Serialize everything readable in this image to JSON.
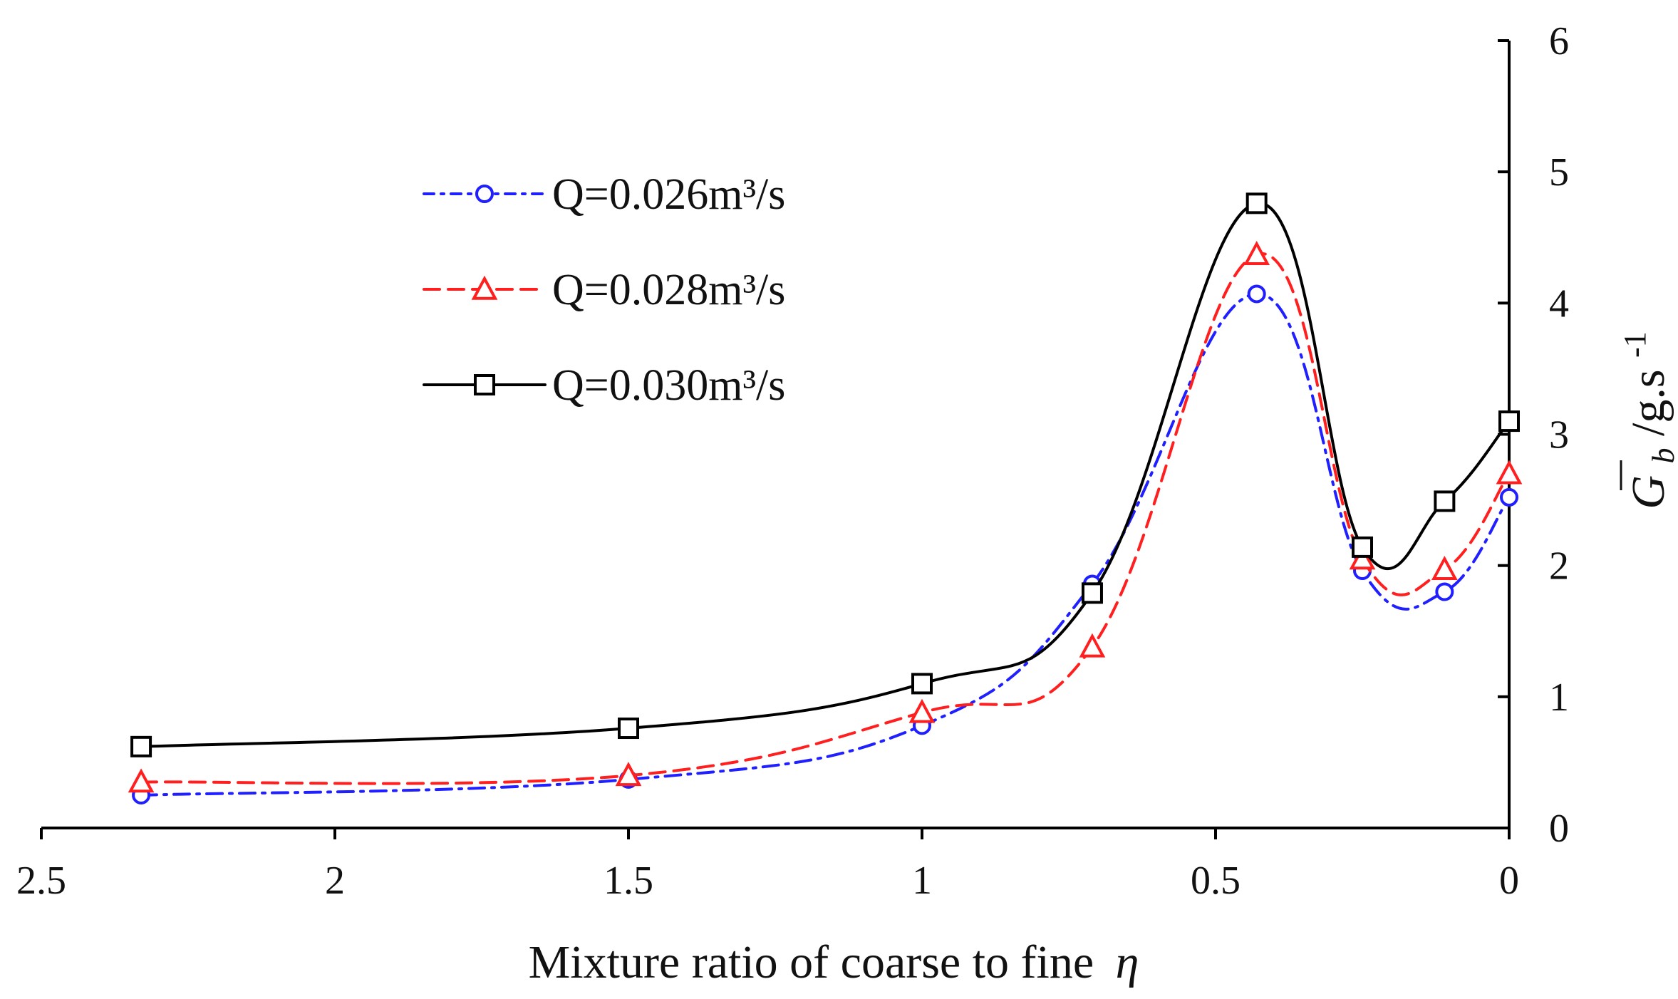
{
  "chart_data": {
    "type": "line",
    "title": "",
    "xlabel": "Mixture ratio of coarse to fine η",
    "xlabel_prefix": "Mixture ratio of coarse to fine",
    "xlabel_var": "η",
    "ylabel": "Gb/g.s-1",
    "ylabel_parts": {
      "var": "G",
      "sub": "b",
      "unit": "/g.s",
      "sup": "-1"
    },
    "x_reversed": true,
    "xlim": [
      0,
      2.5
    ],
    "ylim": [
      0,
      6
    ],
    "x_ticks": [
      2.5,
      2,
      1.5,
      1,
      0.5,
      0
    ],
    "x_tick_labels": [
      "2.5",
      "2",
      "1.5",
      "1",
      "0.5",
      "0"
    ],
    "y_ticks": [
      0,
      1,
      2,
      3,
      4,
      5,
      6
    ],
    "y_tick_labels": [
      "0",
      "1",
      "2",
      "3",
      "4",
      "5",
      "6"
    ],
    "y_axis_side": "right",
    "legend_position": "top-left",
    "grid": false,
    "x": [
      2.33,
      1.5,
      1.0,
      0.71,
      0.43,
      0.25,
      0.11,
      0.0
    ],
    "series": [
      {
        "name": "Q=0.026m³/s",
        "color": "#1f1fff",
        "line_style": "dash-dot",
        "marker": "circle",
        "values": [
          0.25,
          0.37,
          0.78,
          1.86,
          4.07,
          1.96,
          1.8,
          2.52
        ]
      },
      {
        "name": "Q=0.028m³/s",
        "color": "#ff1f1f",
        "line_style": "dashed",
        "marker": "triangle",
        "values": [
          0.35,
          0.4,
          0.88,
          1.38,
          4.37,
          2.05,
          1.97,
          2.7
        ]
      },
      {
        "name": "Q=0.030m³/s",
        "color": "#000000",
        "line_style": "solid",
        "marker": "square",
        "values": [
          0.62,
          0.76,
          1.1,
          1.79,
          4.76,
          2.14,
          2.49,
          3.1
        ]
      }
    ]
  }
}
